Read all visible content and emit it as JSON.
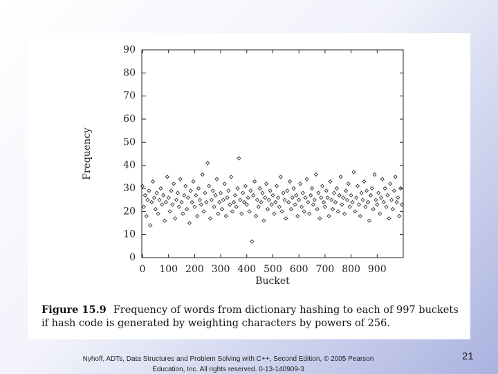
{
  "chart_data": {
    "type": "scatter",
    "caption_label": "Figure 15.9",
    "caption": "Frequency of words from dictionary hashing to each of 997 buckets if hash code is generated by weighting characters by powers of 256.",
    "xlabel": "Bucket",
    "ylabel": "Frequency",
    "xlim": [
      0,
      1000
    ],
    "ylim": [
      0,
      90
    ],
    "xticks": [
      0,
      100,
      200,
      300,
      400,
      500,
      600,
      700,
      800,
      900
    ],
    "yticks": [
      0,
      10,
      20,
      30,
      40,
      50,
      60,
      70,
      80,
      90
    ],
    "color": "#333333",
    "x": [
      0,
      5,
      10,
      15,
      20,
      25,
      30,
      35,
      40,
      45,
      50,
      55,
      60,
      65,
      70,
      75,
      80,
      85,
      90,
      95,
      100,
      105,
      110,
      115,
      120,
      125,
      130,
      135,
      140,
      145,
      150,
      155,
      160,
      165,
      170,
      175,
      180,
      185,
      190,
      195,
      200,
      205,
      210,
      215,
      220,
      225,
      230,
      235,
      240,
      245,
      250,
      255,
      260,
      265,
      270,
      275,
      280,
      285,
      290,
      295,
      300,
      305,
      310,
      315,
      320,
      325,
      330,
      335,
      340,
      345,
      350,
      355,
      360,
      365,
      370,
      375,
      380,
      385,
      390,
      395,
      400,
      405,
      410,
      415,
      420,
      425,
      430,
      435,
      440,
      445,
      450,
      455,
      460,
      465,
      470,
      475,
      480,
      485,
      490,
      495,
      500,
      505,
      510,
      515,
      520,
      525,
      530,
      535,
      540,
      545,
      550,
      555,
      560,
      565,
      570,
      575,
      580,
      585,
      590,
      595,
      600,
      605,
      610,
      615,
      620,
      625,
      630,
      635,
      640,
      645,
      650,
      655,
      660,
      665,
      670,
      675,
      680,
      685,
      690,
      695,
      700,
      705,
      710,
      715,
      720,
      725,
      730,
      735,
      740,
      745,
      750,
      755,
      760,
      765,
      770,
      775,
      780,
      785,
      790,
      795,
      800,
      805,
      810,
      815,
      820,
      825,
      830,
      835,
      840,
      845,
      850,
      855,
      860,
      865,
      870,
      875,
      880,
      885,
      890,
      895,
      900,
      905,
      910,
      915,
      920,
      925,
      930,
      935,
      940,
      945,
      950,
      955,
      960,
      965,
      970,
      975,
      980,
      985,
      990,
      995
    ],
    "values": [
      31,
      22,
      27,
      18,
      25,
      29,
      14,
      24,
      33,
      26,
      21,
      28,
      19,
      25,
      30,
      23,
      27,
      16,
      24,
      35,
      26,
      20,
      29,
      23,
      32,
      17,
      25,
      28,
      22,
      34,
      24,
      19,
      27,
      31,
      21,
      26,
      15,
      29,
      24,
      33,
      22,
      27,
      18,
      30,
      25,
      23,
      36,
      20,
      28,
      24,
      41,
      31,
      17,
      25,
      29,
      22,
      27,
      34,
      19,
      24,
      28,
      21,
      25,
      32,
      18,
      26,
      29,
      23,
      35,
      20,
      24,
      27,
      22,
      30,
      43,
      25,
      19,
      28,
      24,
      31,
      23,
      26,
      20,
      29,
      7,
      27,
      33,
      18,
      25,
      22,
      30,
      24,
      28,
      16,
      26,
      32,
      21,
      25,
      29,
      23,
      27,
      19,
      24,
      31,
      26,
      22,
      35,
      20,
      28,
      25,
      17,
      29,
      24,
      33,
      21,
      26,
      30,
      23,
      27,
      18,
      25,
      32,
      22,
      28,
      20,
      26,
      34,
      24,
      19,
      27,
      30,
      23,
      25,
      36,
      21,
      28,
      17,
      26,
      31,
      24,
      22,
      29,
      26,
      18,
      33,
      25,
      21,
      28,
      24,
      30,
      20,
      27,
      35,
      23,
      26,
      19,
      29,
      25,
      32,
      22,
      27,
      24,
      37,
      20,
      26,
      31,
      23,
      18,
      28,
      25,
      33,
      22,
      29,
      24,
      16,
      27,
      30,
      21,
      36,
      25,
      23,
      28,
      19,
      26,
      34,
      24,
      30,
      22,
      27,
      17,
      32,
      25,
      21,
      29,
      35,
      24,
      26,
      18,
      30,
      23
    ]
  },
  "footer": {
    "citation": "Nyhoff, ADTs, Data Structures and Problem Solving with C++, Second Edition, © 2005 Pearson Education, Inc. All rights reserved. 0-13-140909-3",
    "page": "21"
  }
}
